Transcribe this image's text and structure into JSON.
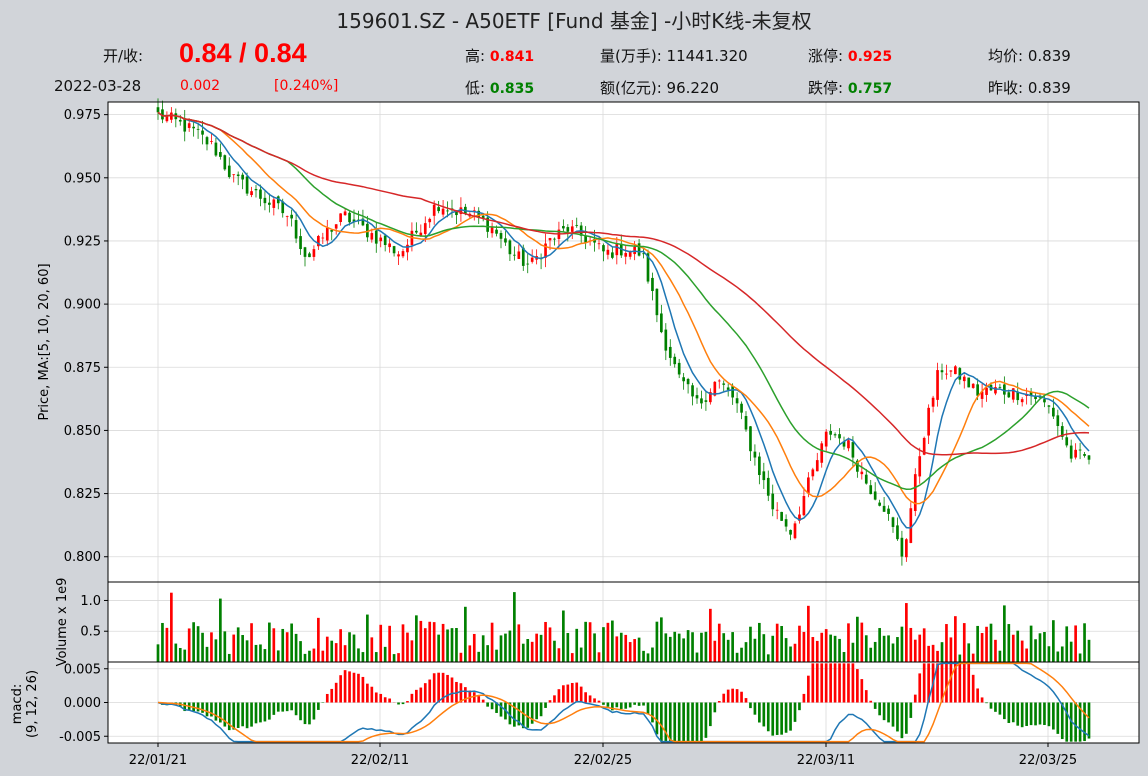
{
  "header": {
    "title": "159601.SZ - A50ETF [Fund 基金] -小时K线-未复权",
    "open_close_label": "开/收:",
    "open_close_value": "0.84 / 0.84",
    "date": "2022-03-28",
    "change": "0.002",
    "change_pct": "[0.240%]",
    "high_label": "高:",
    "high_value": "0.841",
    "low_label": "低:",
    "low_value": "0.835",
    "volume_label": "量(万手):",
    "volume_value": "11441.320",
    "amount_label": "额(亿元):",
    "amount_value": "96.220",
    "limit_up_label": "涨停:",
    "limit_up_value": "0.925",
    "limit_down_label": "跌停:",
    "limit_down_value": "0.757",
    "avg_label": "均价:",
    "avg_value": "0.839",
    "prev_close_label": "昨收:",
    "prev_close_value": "0.839"
  },
  "chart_data": {
    "type": "candlestick",
    "x_ticks": [
      "22/01/21",
      "22/02/11",
      "22/02/25",
      "22/03/11",
      "22/03/25"
    ],
    "price_panel": {
      "ylabel": "Price, MA:[5, 10, 20, 60]",
      "ylim": [
        0.79,
        0.98
      ],
      "yticks": [
        "0.975",
        "0.950",
        "0.925",
        "0.900",
        "0.875",
        "0.850",
        "0.825",
        "0.800"
      ],
      "close_path": [
        0.975,
        0.972,
        0.968,
        0.962,
        0.95,
        0.945,
        0.94,
        0.935,
        0.918,
        0.928,
        0.935,
        0.93,
        0.925,
        0.92,
        0.93,
        0.94,
        0.937,
        0.935,
        0.93,
        0.92,
        0.915,
        0.925,
        0.93,
        0.926,
        0.92,
        0.922,
        0.92,
        0.89,
        0.87,
        0.86,
        0.87,
        0.862,
        0.84,
        0.82,
        0.81,
        0.83,
        0.85,
        0.845,
        0.83,
        0.82,
        0.8,
        0.845,
        0.875,
        0.872,
        0.865,
        0.866,
        0.865,
        0.864,
        0.858,
        0.84,
        0.839
      ],
      "ma_colors": [
        "#1f77b4",
        "#ff7f0e",
        "#2ca02c",
        "#d62728"
      ],
      "ma_periods": [
        5,
        10,
        20,
        60
      ]
    },
    "volume_panel": {
      "ylabel": "Volume x 1e9",
      "ylim": [
        0,
        1.3
      ],
      "yticks": [
        "1.0",
        "0.5"
      ]
    },
    "macd_panel": {
      "ylabel": "macd:\n(9, 12, 26)",
      "ylabel_line1": "macd:",
      "ylabel_line2": "(9, 12, 26)",
      "ylim": [
        -0.006,
        0.006
      ],
      "yticks": [
        "0.005",
        "0.000",
        "-0.005"
      ],
      "line_colors": [
        "#1f77b4",
        "#ff7f0e"
      ]
    },
    "up_color": "#ff0000",
    "down_color": "#008000"
  }
}
